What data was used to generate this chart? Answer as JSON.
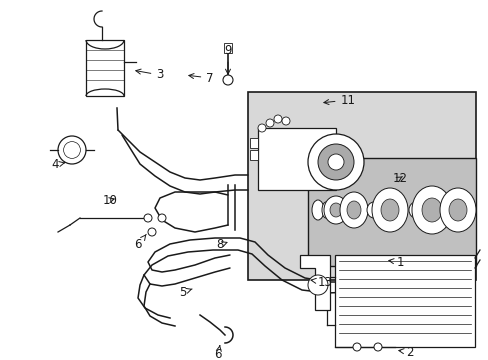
{
  "bg_color": "#ffffff",
  "line_color": "#1a1a1a",
  "shaded_color": "#d8d8d8",
  "inner_box_color": "#c0c0c0",
  "figsize": [
    4.89,
    3.6
  ],
  "dpi": 100
}
